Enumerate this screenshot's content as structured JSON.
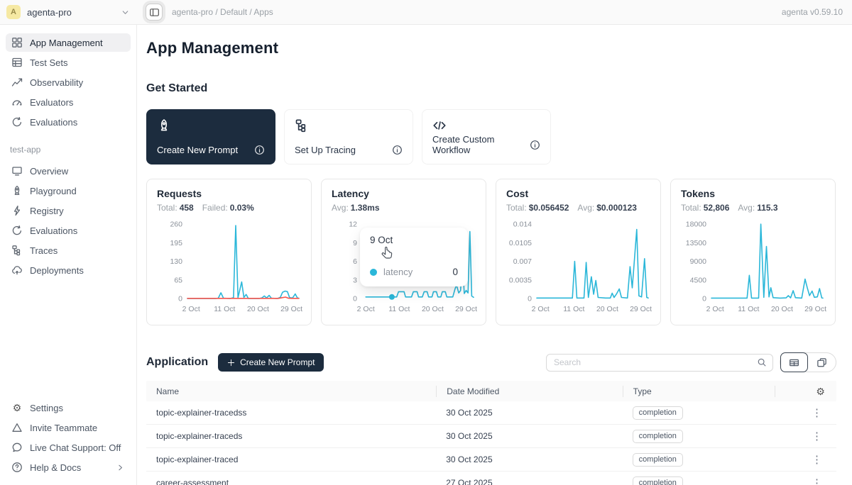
{
  "topbar": {
    "workspace": {
      "avatar_letter": "A",
      "name": "agenta-pro"
    },
    "breadcrumb": "agenta-pro / Default / Apps",
    "version": "agenta v0.59.10"
  },
  "sidebar": {
    "primary": [
      {
        "icon": "grid",
        "label": "App Management",
        "active": true
      },
      {
        "icon": "table",
        "label": "Test Sets"
      },
      {
        "icon": "chart",
        "label": "Observability"
      },
      {
        "icon": "gauge",
        "label": "Evaluators"
      },
      {
        "icon": "loop",
        "label": "Evaluations"
      }
    ],
    "app_section": {
      "label": "test-app",
      "items": [
        {
          "icon": "monitor",
          "label": "Overview"
        },
        {
          "icon": "rocket",
          "label": "Playground"
        },
        {
          "icon": "lightning",
          "label": "Registry"
        },
        {
          "icon": "loop",
          "label": "Evaluations"
        },
        {
          "icon": "tree",
          "label": "Traces"
        },
        {
          "icon": "cloud",
          "label": "Deployments"
        }
      ]
    },
    "bottom": [
      {
        "icon": "gear",
        "label": "Settings"
      },
      {
        "icon": "triangle",
        "label": "Invite Teammate"
      },
      {
        "icon": "chat",
        "label": "Live Chat Support: Off"
      },
      {
        "icon": "question",
        "label": "Help & Docs",
        "chevron": true
      }
    ]
  },
  "main": {
    "title": "App Management",
    "get_started": {
      "heading": "Get Started",
      "cards": [
        {
          "icon": "rocket",
          "label": "Create New Prompt",
          "style": "dark"
        },
        {
          "icon": "tree",
          "label": "Set Up Tracing",
          "style": "light"
        },
        {
          "icon": "code",
          "label": "Create Custom Workflow",
          "style": "light"
        }
      ]
    },
    "application": {
      "heading": "Application",
      "create_button": "Create New Prompt",
      "search_placeholder": "Search"
    },
    "table": {
      "columns": [
        "Name",
        "Date Modified",
        "Type"
      ],
      "rows": [
        {
          "name": "topic-explainer-tracedss",
          "date": "30 Oct 2025",
          "type": "completion"
        },
        {
          "name": "topic-explainer-traceds",
          "date": "30 Oct 2025",
          "type": "completion"
        },
        {
          "name": "topic-explainer-traced",
          "date": "30 Oct 2025",
          "type": "completion"
        },
        {
          "name": "career-assessment",
          "date": "27 Oct 2025",
          "type": "completion"
        }
      ]
    }
  },
  "chart_data": [
    {
      "key": "requests",
      "type": "line",
      "title": "Requests",
      "stats": [
        {
          "label": "Total:",
          "value": "458"
        },
        {
          "label": "Failed:",
          "value": "0.03%"
        }
      ],
      "ylim": [
        0,
        260
      ],
      "yticks": [
        260,
        195,
        130,
        65,
        0
      ],
      "xticks": [
        {
          "day": 2,
          "label": "2 Oct"
        },
        {
          "day": 11,
          "label": "11 Oct"
        },
        {
          "day": 20,
          "label": "20 Oct"
        },
        {
          "day": 29,
          "label": "29 Oct"
        }
      ],
      "series": [
        {
          "name": "requests",
          "color": "#2bb7d9",
          "points": [
            [
              1,
              0
            ],
            [
              8.5,
              0
            ],
            [
              9.3,
              1
            ],
            [
              10,
              20
            ],
            [
              10.7,
              1
            ],
            [
              12.5,
              0
            ],
            [
              13.4,
              3
            ],
            [
              14,
              255
            ],
            [
              14.6,
              3
            ],
            [
              15.6,
              58
            ],
            [
              16.2,
              4
            ],
            [
              16.8,
              14
            ],
            [
              17.4,
              0
            ],
            [
              20.3,
              0
            ],
            [
              21,
              2
            ],
            [
              21.7,
              9
            ],
            [
              22.3,
              2
            ],
            [
              23,
              11
            ],
            [
              23.6,
              1
            ],
            [
              25.2,
              0
            ],
            [
              26,
              4
            ],
            [
              26.6,
              22
            ],
            [
              27.3,
              26
            ],
            [
              27.9,
              24
            ],
            [
              28.5,
              3
            ],
            [
              29.3,
              2
            ],
            [
              30,
              16
            ],
            [
              30.6,
              2
            ],
            [
              31,
              1
            ]
          ]
        },
        {
          "name": "failed",
          "color": "#f5554d",
          "points": [
            [
              1,
              0.5
            ],
            [
              25.5,
              0.5
            ],
            [
              26.5,
              3
            ],
            [
              27.4,
              5
            ],
            [
              28.2,
              1
            ],
            [
              29,
              0.5
            ],
            [
              31,
              0.5
            ]
          ]
        }
      ]
    },
    {
      "key": "latency",
      "type": "line",
      "title": "Latency",
      "stats": [
        {
          "label": "Avg:",
          "value": "1.38ms"
        }
      ],
      "ylim": [
        0,
        12
      ],
      "yticks": [
        12,
        9,
        6,
        3,
        0
      ],
      "xticks": [
        {
          "day": 2,
          "label": "2 Oct"
        },
        {
          "day": 11,
          "label": "11 Oct"
        },
        {
          "day": 20,
          "label": "20 Oct"
        },
        {
          "day": 29,
          "label": "29 Oct"
        }
      ],
      "series": [
        {
          "name": "latency",
          "color": "#2bb7d9",
          "points": [
            [
              2,
              0.25
            ],
            [
              10.3,
              0.25
            ],
            [
              10.8,
              1.1
            ],
            [
              12.3,
              1.1
            ],
            [
              12.7,
              0.25
            ],
            [
              14.3,
              0.25
            ],
            [
              14.8,
              1.1
            ],
            [
              15.8,
              1.1
            ],
            [
              16.2,
              0.25
            ],
            [
              17.2,
              0.25
            ],
            [
              17.7,
              1.1
            ],
            [
              18.5,
              1.1
            ],
            [
              18.9,
              0.25
            ],
            [
              19.8,
              0.25
            ],
            [
              20.2,
              1.1
            ],
            [
              21,
              1.1
            ],
            [
              21.4,
              0.25
            ],
            [
              22.2,
              0.25
            ],
            [
              22.6,
              1.1
            ],
            [
              23.4,
              1.1
            ],
            [
              23.8,
              0.25
            ],
            [
              25.4,
              0.25
            ],
            [
              26,
              1.5
            ],
            [
              26.4,
              2.2
            ],
            [
              27,
              0.9
            ],
            [
              27.5,
              1.3
            ],
            [
              28,
              6
            ],
            [
              28.5,
              0.8
            ],
            [
              29,
              1.3
            ],
            [
              29.5,
              0.9
            ],
            [
              30,
              10.8
            ],
            [
              30.5,
              0.4
            ],
            [
              31,
              0.2
            ]
          ]
        }
      ],
      "marker": {
        "day": 9,
        "v": 0.25,
        "color": "#2bb7d9"
      },
      "tooltip": {
        "date": "9 Oct",
        "series": "latency",
        "value": "0",
        "color": "#2bb7d9"
      }
    },
    {
      "key": "cost",
      "type": "line",
      "title": "Cost",
      "stats": [
        {
          "label": "Total:",
          "value": "$0.056452"
        },
        {
          "label": "Avg:",
          "value": "$0.000123"
        }
      ],
      "ylim": [
        0,
        0.014
      ],
      "yticks": [
        0.014,
        0.0105,
        0.007,
        0.0035,
        0
      ],
      "xticks": [
        {
          "day": 2,
          "label": "2 Oct"
        },
        {
          "day": 11,
          "label": "11 Oct"
        },
        {
          "day": 20,
          "label": "20 Oct"
        },
        {
          "day": 29,
          "label": "29 Oct"
        }
      ],
      "series": [
        {
          "name": "cost",
          "color": "#2bb7d9",
          "points": [
            [
              1,
              0.0001
            ],
            [
              10.6,
              0.0001
            ],
            [
              11.2,
              0.007
            ],
            [
              11.8,
              0.0001
            ],
            [
              13.7,
              0.0001
            ],
            [
              14.3,
              0.0068
            ],
            [
              14.9,
              0.0002
            ],
            [
              15.7,
              0.0041
            ],
            [
              16.3,
              0.0008
            ],
            [
              16.9,
              0.0034
            ],
            [
              17.5,
              0.0002
            ],
            [
              19.5,
              0.0001
            ],
            [
              20.8,
              0.0001
            ],
            [
              21.3,
              0.001
            ],
            [
              21.8,
              0.0002
            ],
            [
              22.5,
              0.0009
            ],
            [
              23.2,
              0.0018
            ],
            [
              23.8,
              0.0002
            ],
            [
              25.4,
              0.0001
            ],
            [
              26.1,
              0.006
            ],
            [
              26.7,
              0.002
            ],
            [
              27.2,
              0.0065
            ],
            [
              27.9,
              0.013
            ],
            [
              28.5,
              0.0005
            ],
            [
              29.2,
              0.0003
            ],
            [
              30,
              0.0075
            ],
            [
              30.6,
              0.0002
            ],
            [
              31,
              0.0001
            ]
          ]
        }
      ]
    },
    {
      "key": "tokens",
      "type": "line",
      "title": "Tokens",
      "stats": [
        {
          "label": "Total:",
          "value": "52,806"
        },
        {
          "label": "Avg:",
          "value": "115.3"
        }
      ],
      "ylim": [
        0,
        18000
      ],
      "yticks": [
        18000,
        13500,
        9000,
        4500,
        0
      ],
      "xticks": [
        {
          "day": 2,
          "label": "2 Oct"
        },
        {
          "day": 11,
          "label": "11 Oct"
        },
        {
          "day": 20,
          "label": "20 Oct"
        },
        {
          "day": 29,
          "label": "29 Oct"
        }
      ],
      "series": [
        {
          "name": "tokens",
          "color": "#2bb7d9",
          "points": [
            [
              1,
              100
            ],
            [
              10.6,
              100
            ],
            [
              11.2,
              5600
            ],
            [
              11.8,
              100
            ],
            [
              13.7,
              100
            ],
            [
              14.3,
              18000
            ],
            [
              15.1,
              300
            ],
            [
              15.8,
              12600
            ],
            [
              16.5,
              400
            ],
            [
              17,
              2600
            ],
            [
              17.6,
              200
            ],
            [
              19.5,
              100
            ],
            [
              21.1,
              150
            ],
            [
              21.7,
              700
            ],
            [
              22.3,
              150
            ],
            [
              23,
              1900
            ],
            [
              23.6,
              200
            ],
            [
              25.3,
              100
            ],
            [
              26.2,
              4700
            ],
            [
              26.8,
              2600
            ],
            [
              27.4,
              700
            ],
            [
              28.1,
              1800
            ],
            [
              28.7,
              300
            ],
            [
              29.5,
              400
            ],
            [
              30.1,
              2400
            ],
            [
              30.7,
              150
            ],
            [
              31,
              100
            ]
          ]
        }
      ]
    }
  ],
  "colors": {
    "accent_dark": "#1c2c3e",
    "chart_blue": "#2bb7d9",
    "chart_red": "#f5554d",
    "avatar_bg": "#f6e9a3"
  }
}
